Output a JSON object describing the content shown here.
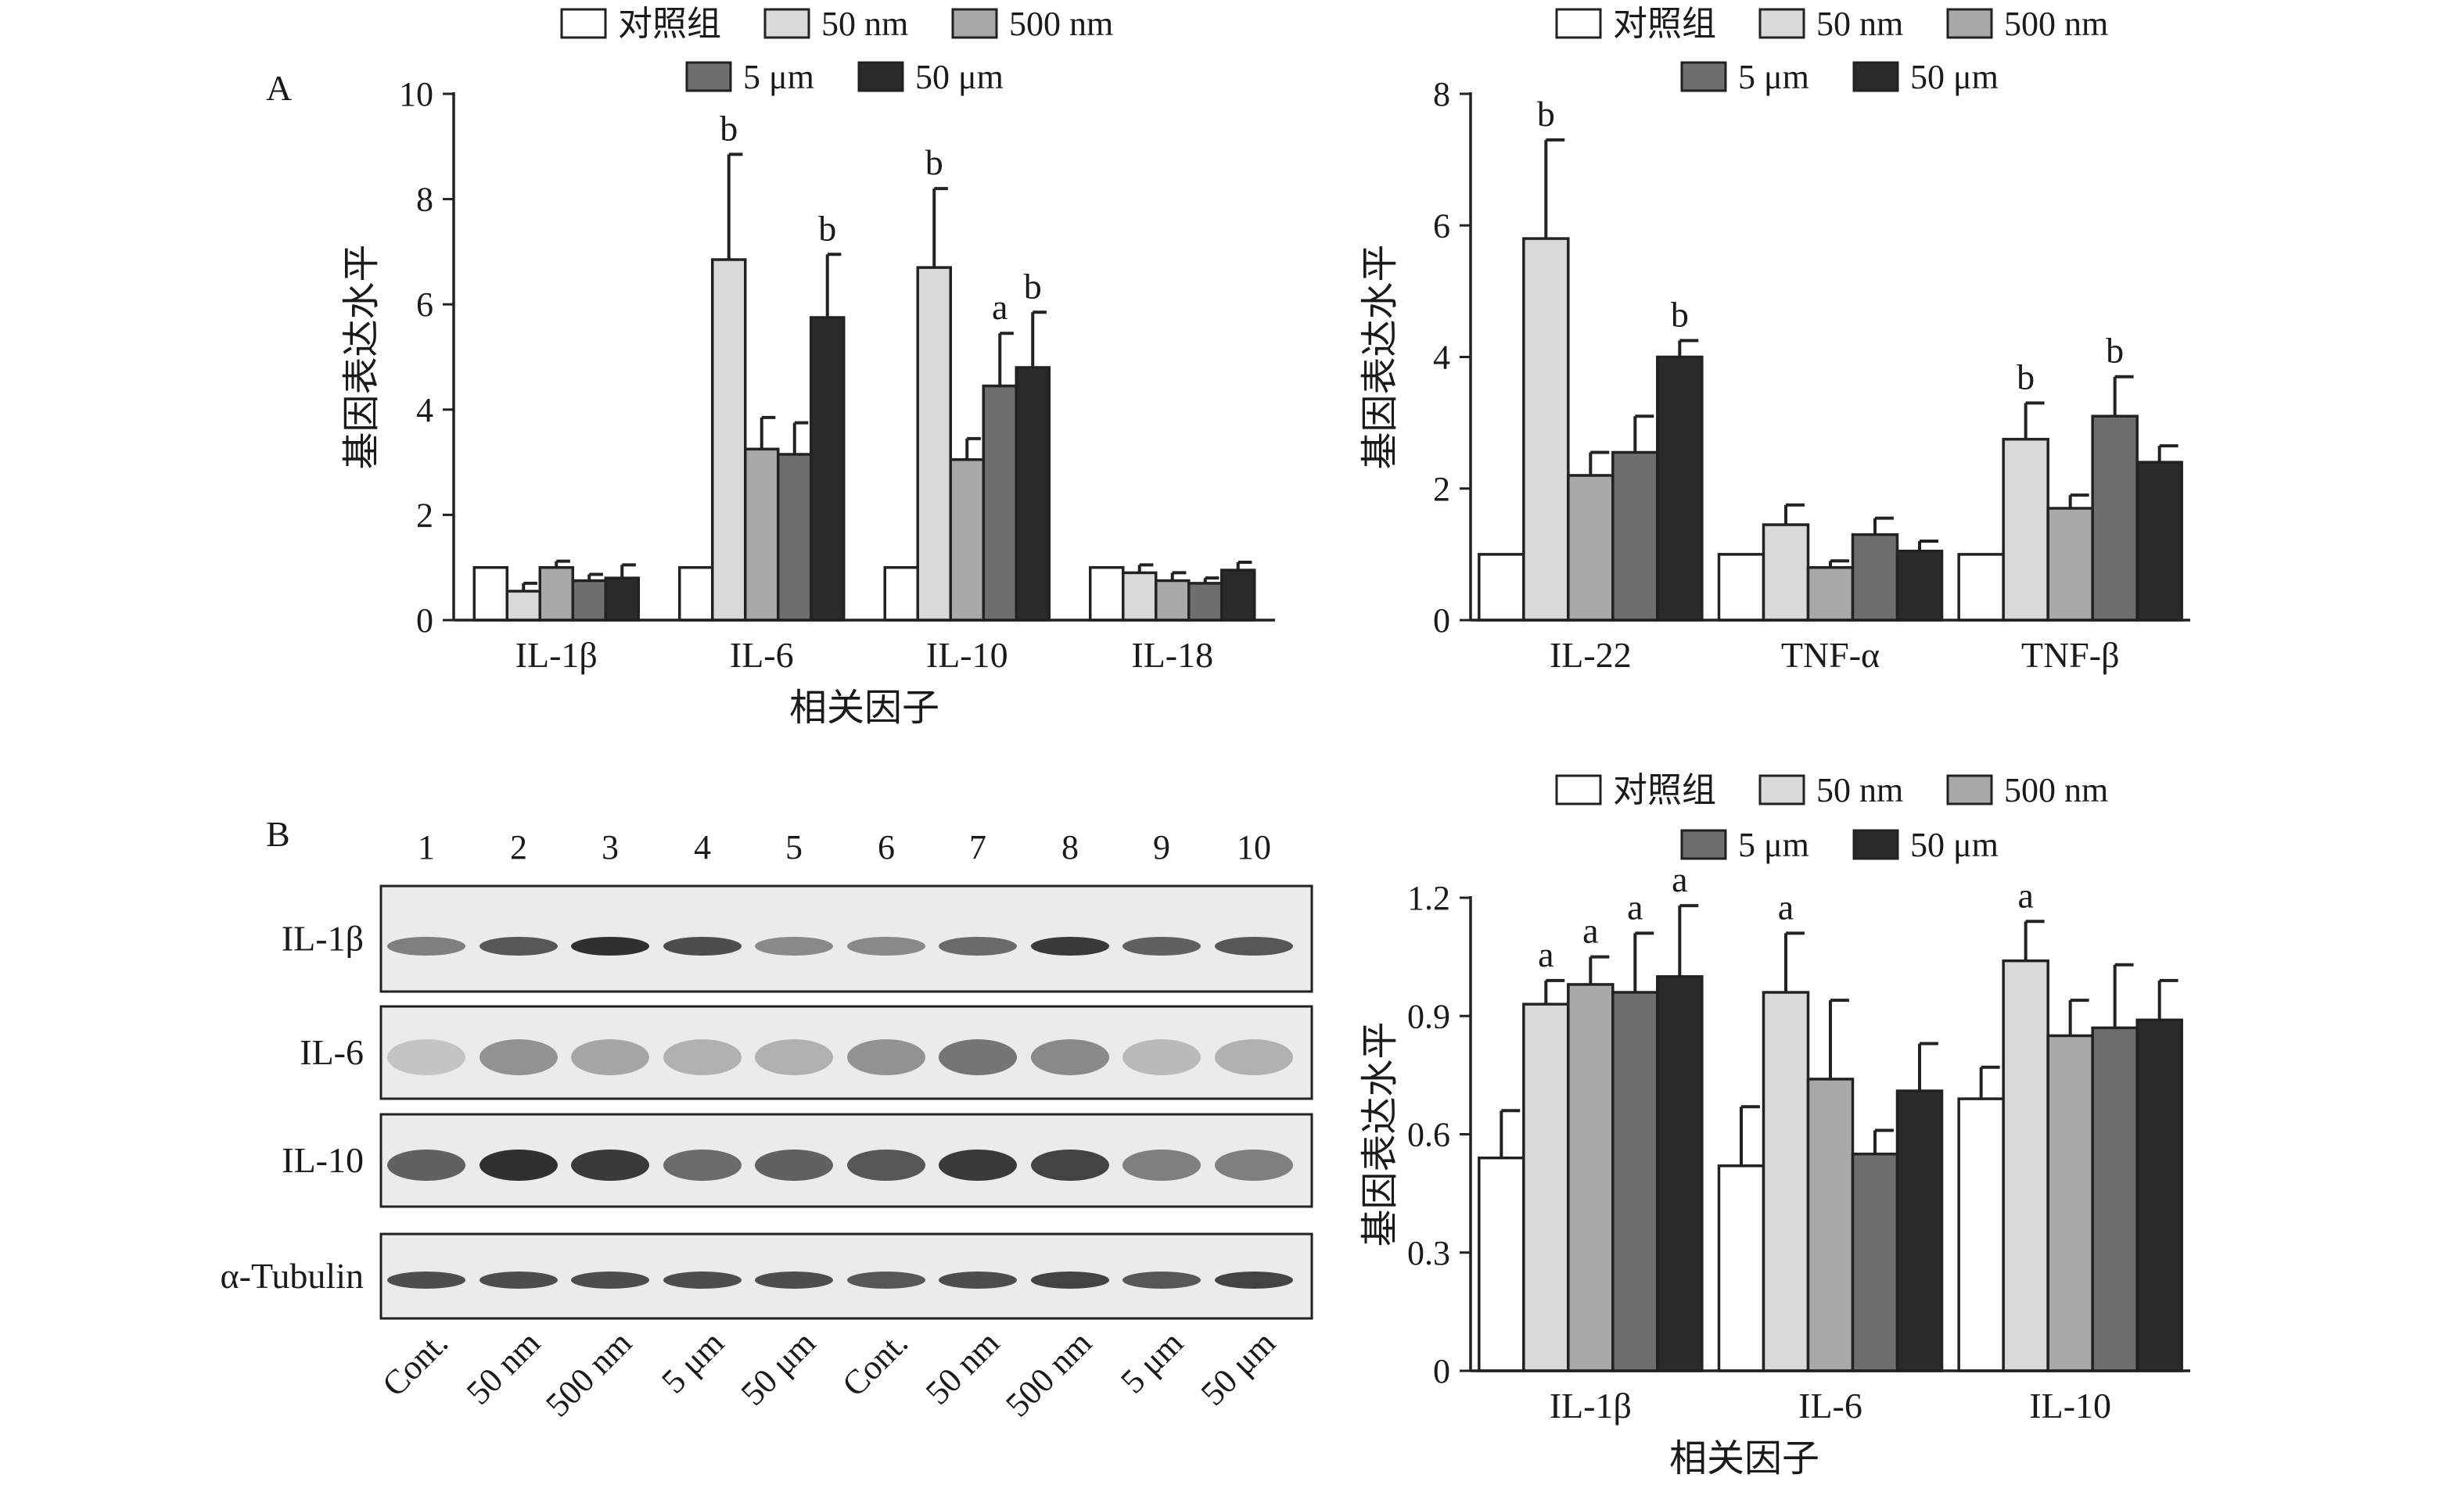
{
  "legend": {
    "items": [
      {
        "label": "对照组",
        "color": "#ffffff"
      },
      {
        "label": "50 nm",
        "color": "#d9d9d9"
      },
      {
        "label": "500 nm",
        "color": "#a9a9a9"
      },
      {
        "label": "5 μm",
        "color": "#6e6e6e"
      },
      {
        "label": "50 μm",
        "color": "#2a2a2a"
      }
    ]
  },
  "panel_labels": {
    "a": "A",
    "b": "B"
  },
  "chart_data": [
    {
      "id": "a_left",
      "type": "bar",
      "xlabel": "相关因子",
      "ylabel": "基因表达水平",
      "ylim": [
        0,
        10
      ],
      "yticks": [
        "0",
        "2",
        "4",
        "6",
        "8",
        "10"
      ],
      "categories": [
        "IL-1β",
        "IL-6",
        "IL-10",
        "IL-18"
      ],
      "series": [
        {
          "name": "对照组",
          "values": [
            1.0,
            1.0,
            1.0,
            1.0
          ],
          "errors": [
            0,
            0,
            0,
            0
          ],
          "labels": [
            "",
            "",
            "",
            ""
          ]
        },
        {
          "name": "50 nm",
          "values": [
            0.55,
            6.85,
            6.7,
            0.9
          ],
          "errors": [
            0.15,
            2.0,
            1.5,
            0.15
          ],
          "labels": [
            "",
            "b",
            "b",
            ""
          ]
        },
        {
          "name": "500 nm",
          "values": [
            1.0,
            3.25,
            3.05,
            0.75
          ],
          "errors": [
            0.12,
            0.6,
            0.4,
            0.15
          ],
          "labels": [
            "",
            "",
            "",
            ""
          ]
        },
        {
          "name": "5 μm",
          "values": [
            0.75,
            3.15,
            4.45,
            0.7
          ],
          "errors": [
            0.12,
            0.6,
            1.0,
            0.1
          ],
          "labels": [
            "",
            "",
            "a",
            ""
          ]
        },
        {
          "name": "50 μm",
          "values": [
            0.8,
            5.75,
            4.8,
            0.95
          ],
          "errors": [
            0.25,
            1.2,
            1.05,
            0.15
          ],
          "labels": [
            "",
            "b",
            "b",
            ""
          ]
        }
      ]
    },
    {
      "id": "a_right",
      "type": "bar",
      "xlabel": "",
      "ylabel": "基因表达水平",
      "ylim": [
        0,
        8
      ],
      "yticks": [
        "0",
        "2",
        "4",
        "6",
        "8"
      ],
      "categories": [
        "IL-22",
        "TNF-α",
        "TNF-β"
      ],
      "series": [
        {
          "name": "对照组",
          "values": [
            1.0,
            1.0,
            1.0
          ],
          "errors": [
            0,
            0,
            0
          ],
          "labels": [
            "",
            "",
            ""
          ]
        },
        {
          "name": "50 nm",
          "values": [
            5.8,
            1.45,
            2.75
          ],
          "errors": [
            1.5,
            0.3,
            0.55
          ],
          "labels": [
            "b",
            "",
            "b"
          ]
        },
        {
          "name": "500 nm",
          "values": [
            2.2,
            0.8,
            1.7
          ],
          "errors": [
            0.35,
            0.1,
            0.2
          ],
          "labels": [
            "",
            "",
            ""
          ]
        },
        {
          "name": "5 μm",
          "values": [
            2.55,
            1.3,
            3.1
          ],
          "errors": [
            0.55,
            0.25,
            0.6
          ],
          "labels": [
            "",
            "",
            "b"
          ]
        },
        {
          "name": "50 μm",
          "values": [
            4.0,
            1.05,
            2.4
          ],
          "errors": [
            0.25,
            0.15,
            0.25
          ],
          "labels": [
            "b",
            "",
            ""
          ]
        }
      ]
    },
    {
      "id": "b_right",
      "type": "bar",
      "xlabel": "相关因子",
      "ylabel": "基因表达水平",
      "ylim": [
        0,
        1.2
      ],
      "yticks": [
        "0",
        "0.3",
        "0.6",
        "0.9",
        "1.2"
      ],
      "categories": [
        "IL-1β",
        "IL-6",
        "IL-10"
      ],
      "series": [
        {
          "name": "对照组",
          "values": [
            0.54,
            0.52,
            0.69
          ],
          "errors": [
            0.12,
            0.15,
            0.08
          ],
          "labels": [
            "",
            "",
            ""
          ]
        },
        {
          "name": "50 nm",
          "values": [
            0.93,
            0.96,
            1.04
          ],
          "errors": [
            0.06,
            0.15,
            0.1
          ],
          "labels": [
            "a",
            "a",
            "a"
          ]
        },
        {
          "name": "500 nm",
          "values": [
            0.98,
            0.74,
            0.85
          ],
          "errors": [
            0.07,
            0.2,
            0.09
          ],
          "labels": [
            "a",
            "",
            ""
          ]
        },
        {
          "name": "5 μm",
          "values": [
            0.96,
            0.55,
            0.87
          ],
          "errors": [
            0.15,
            0.06,
            0.16
          ],
          "labels": [
            "a",
            "",
            ""
          ]
        },
        {
          "name": "50 μm",
          "values": [
            1.0,
            0.71,
            0.89
          ],
          "errors": [
            0.18,
            0.12,
            0.1
          ],
          "labels": [
            "a",
            "",
            ""
          ]
        }
      ]
    }
  ],
  "blot": {
    "lane_numbers": [
      "1",
      "2",
      "3",
      "4",
      "5",
      "6",
      "7",
      "8",
      "9",
      "10"
    ],
    "lane_labels": [
      "Cont.",
      "50 nm",
      "500 nm",
      "5 μm",
      "50 μm",
      "Cont.",
      "50 nm",
      "500 nm",
      "5 μm",
      "50 μm"
    ],
    "rows": [
      {
        "label": "IL-1β",
        "intensity": [
          0.55,
          0.75,
          0.95,
          0.8,
          0.5,
          0.5,
          0.65,
          0.9,
          0.7,
          0.75
        ]
      },
      {
        "label": "IL-6",
        "intensity": [
          0.2,
          0.45,
          0.35,
          0.3,
          0.3,
          0.45,
          0.6,
          0.5,
          0.25,
          0.3
        ]
      },
      {
        "label": "IL-10",
        "intensity": [
          0.7,
          0.95,
          0.9,
          0.65,
          0.7,
          0.75,
          0.9,
          0.85,
          0.55,
          0.55
        ]
      },
      {
        "label": "α-Tubulin",
        "intensity": [
          0.8,
          0.8,
          0.8,
          0.8,
          0.8,
          0.75,
          0.8,
          0.85,
          0.75,
          0.85
        ]
      }
    ]
  }
}
